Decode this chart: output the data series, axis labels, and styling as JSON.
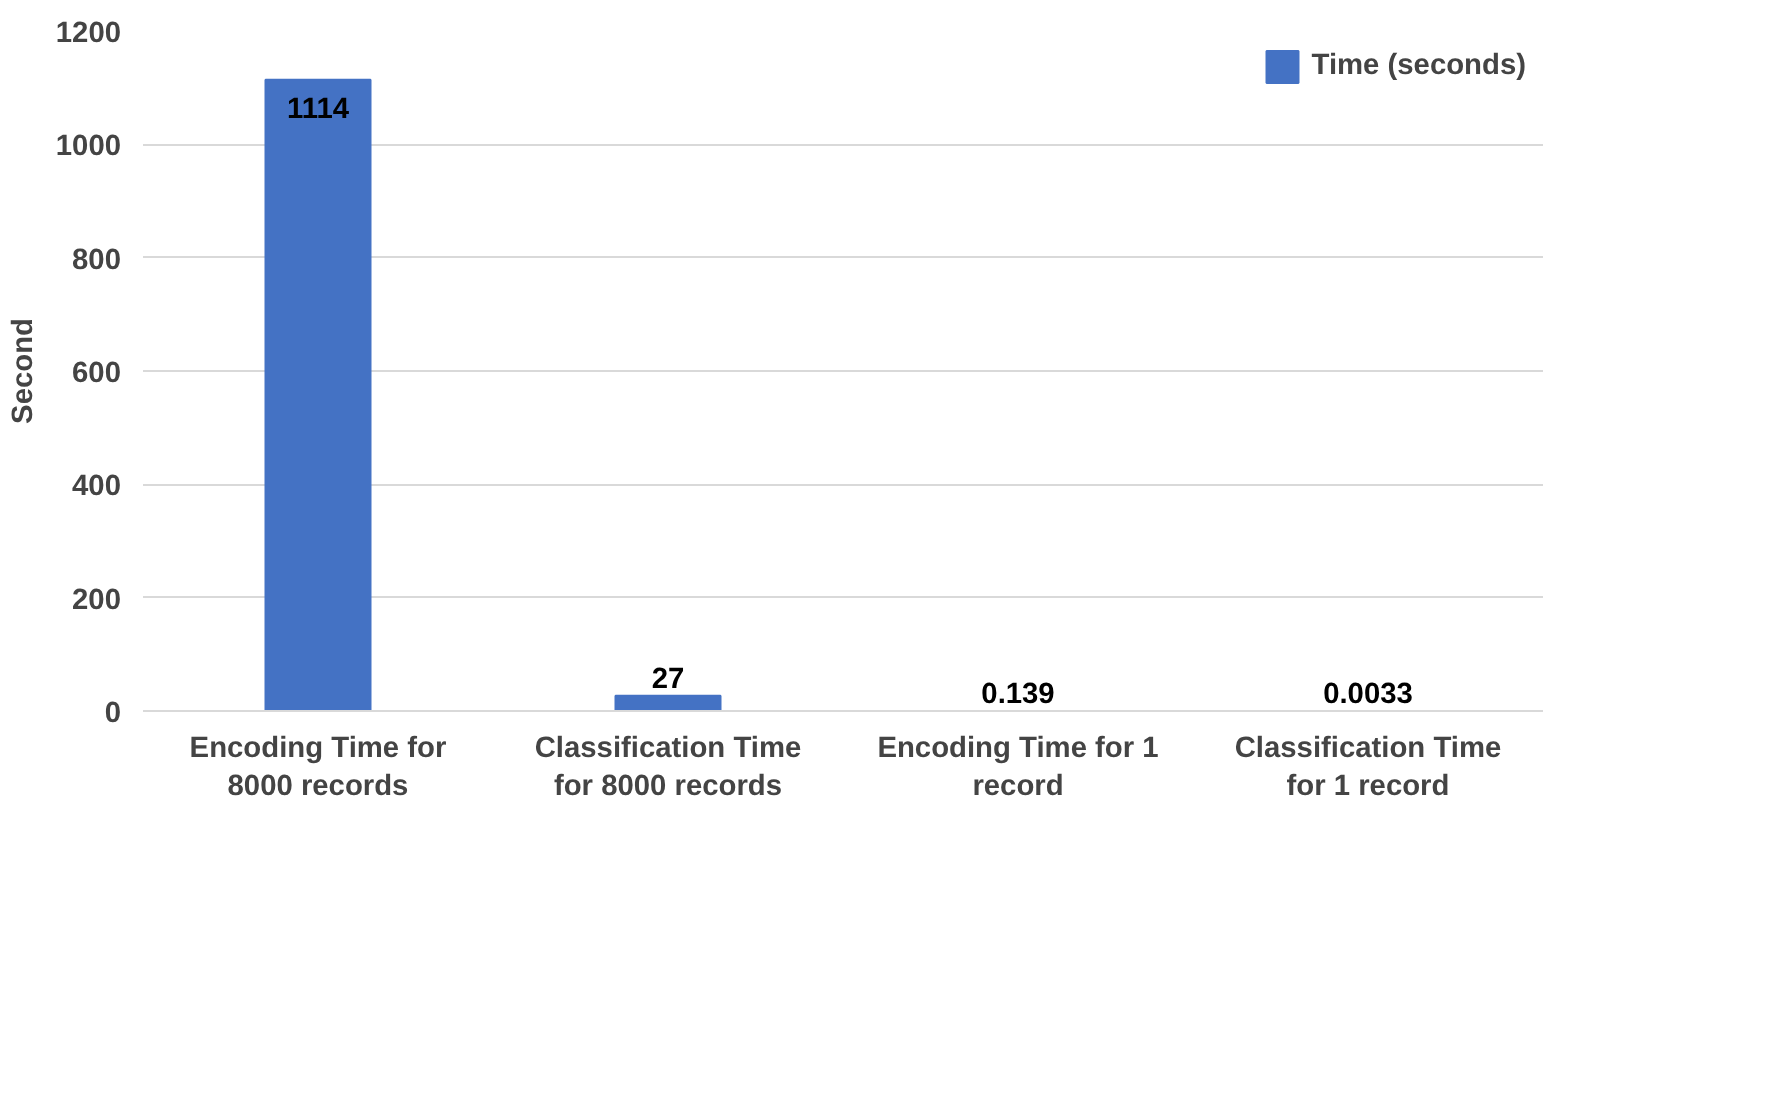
{
  "chart_data": {
    "type": "bar",
    "ylabel": "Second",
    "categories": [
      "Encoding Time for 8000 records",
      "Classification Time for 8000 records",
      "Encoding Time for 1 record",
      "Classification Time for 1 record"
    ],
    "series": [
      {
        "name": "Time (seconds)",
        "color": "#4472c4",
        "values": [
          1114,
          27,
          0.139,
          0.0033
        ]
      }
    ],
    "ylim": [
      0,
      1200
    ],
    "yticks": [
      0,
      200,
      400,
      600,
      800,
      1000,
      1200
    ],
    "grid": "y",
    "legend": "top right",
    "data_labels": true
  }
}
